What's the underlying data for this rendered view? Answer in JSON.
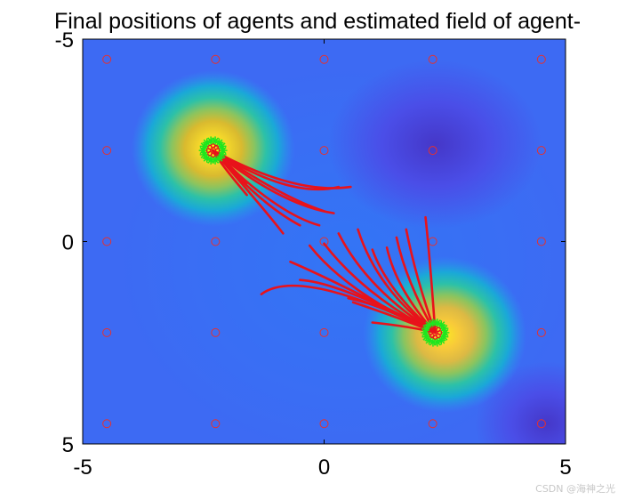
{
  "chart_data": {
    "type": "heatmap",
    "title": "Final positions of agents and estimated field of agent-",
    "xlabel": "",
    "ylabel": "",
    "xlim": [
      -5,
      5
    ],
    "ylim": [
      -5,
      5
    ],
    "y_reversed": true,
    "x_ticks": [
      {
        "value": -5,
        "label": "-5"
      },
      {
        "value": 0,
        "label": "0"
      },
      {
        "value": 5,
        "label": "5"
      }
    ],
    "y_ticks": [
      {
        "value": -5,
        "label": "-5"
      },
      {
        "value": 0,
        "label": "0"
      },
      {
        "value": 5,
        "label": "5"
      }
    ],
    "field_peaks": [
      {
        "x": -2.3,
        "y": -2.3,
        "level": "high"
      },
      {
        "x": 2.5,
        "y": 2.3,
        "level": "high"
      }
    ],
    "field_lows": [
      {
        "x": 2.3,
        "y": -2.4,
        "level": "low"
      },
      {
        "x": 4.6,
        "y": 4.5,
        "level": "low"
      }
    ],
    "grid_markers": {
      "x": [
        -4.5,
        -2.25,
        0,
        2.25,
        4.5
      ],
      "y": [
        -4.5,
        -2.25,
        0,
        2.25,
        4.5
      ],
      "marker": "circle",
      "color": "#e8302c"
    },
    "agent_clusters": [
      {
        "x": -2.3,
        "y": -2.25
      },
      {
        "x": 2.3,
        "y": 2.25
      }
    ],
    "trajectories": [
      [
        [
          0.55,
          -1.35
        ],
        [
          -0.6,
          -1.15
        ],
        [
          -2.3,
          -2.25
        ]
      ],
      [
        [
          0.3,
          -1.35
        ],
        [
          -0.7,
          -1.05
        ],
        [
          -2.3,
          -2.25
        ]
      ],
      [
        [
          0.0,
          -0.75
        ],
        [
          -0.9,
          -1.1
        ],
        [
          -2.3,
          -2.25
        ]
      ],
      [
        [
          0.2,
          -0.7
        ],
        [
          -0.9,
          -0.9
        ],
        [
          -2.3,
          -2.25
        ]
      ],
      [
        [
          -0.1,
          -0.4
        ],
        [
          -1.0,
          -0.7
        ],
        [
          -2.3,
          -2.25
        ]
      ],
      [
        [
          -0.5,
          -0.4
        ],
        [
          -1.3,
          -0.9
        ],
        [
          -2.3,
          -2.25
        ]
      ],
      [
        [
          -0.85,
          -0.2
        ],
        [
          -1.2,
          -0.75
        ],
        [
          -2.3,
          -2.25
        ]
      ],
      [
        [
          -1.6,
          -1.15
        ],
        [
          -2.2,
          -2.0
        ],
        [
          -2.3,
          -2.25
        ]
      ],
      [
        [
          -1.6,
          -1.45
        ],
        [
          -2.1,
          -2.05
        ],
        [
          -2.3,
          -2.25
        ]
      ],
      [
        [
          2.1,
          -0.6
        ],
        [
          2.2,
          0.5
        ],
        [
          2.3,
          2.25
        ]
      ],
      [
        [
          1.7,
          -0.3
        ],
        [
          1.9,
          0.9
        ],
        [
          2.3,
          2.25
        ]
      ],
      [
        [
          1.5,
          -0.1
        ],
        [
          1.7,
          1.0
        ],
        [
          2.3,
          2.25
        ]
      ],
      [
        [
          1.3,
          0.15
        ],
        [
          1.5,
          1.2
        ],
        [
          2.3,
          2.25
        ]
      ],
      [
        [
          1.0,
          0.2
        ],
        [
          1.3,
          1.2
        ],
        [
          2.3,
          2.25
        ]
      ],
      [
        [
          0.7,
          -0.3
        ],
        [
          1.1,
          1.2
        ],
        [
          2.3,
          2.25
        ]
      ],
      [
        [
          0.3,
          -0.2
        ],
        [
          0.9,
          1.2
        ],
        [
          2.3,
          2.25
        ]
      ],
      [
        [
          0.0,
          0.05
        ],
        [
          0.8,
          1.3
        ],
        [
          2.3,
          2.25
        ]
      ],
      [
        [
          -0.3,
          0.1
        ],
        [
          0.5,
          1.3
        ],
        [
          2.3,
          2.25
        ]
      ],
      [
        [
          -0.7,
          0.5
        ],
        [
          0.1,
          0.9
        ],
        [
          2.3,
          2.25
        ]
      ],
      [
        [
          -0.5,
          0.95
        ],
        [
          0.3,
          1.0
        ],
        [
          2.3,
          2.25
        ]
      ],
      [
        [
          -1.3,
          1.3
        ],
        [
          -0.5,
          0.6
        ],
        [
          2.3,
          2.25
        ]
      ],
      [
        [
          0.5,
          1.4
        ],
        [
          1.3,
          1.6
        ],
        [
          2.3,
          2.25
        ]
      ],
      [
        [
          0.6,
          1.5
        ],
        [
          1.6,
          1.9
        ],
        [
          2.3,
          2.25
        ]
      ],
      [
        [
          1.0,
          2.0
        ],
        [
          1.8,
          2.1
        ],
        [
          2.3,
          2.25
        ]
      ]
    ],
    "colormap": "parula"
  },
  "watermark": "CSDN @海神之光"
}
